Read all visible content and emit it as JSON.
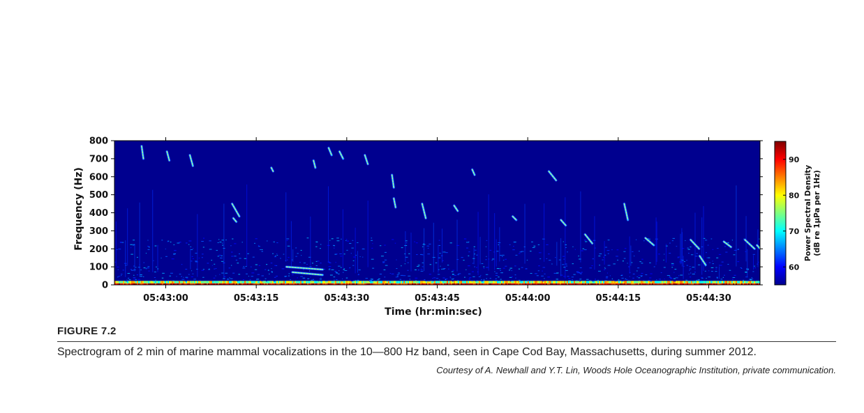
{
  "chart_data": {
    "type": "heatmap",
    "subtype": "spectrogram",
    "xlabel": "Time (hr:min:sec)",
    "ylabel": "Frequency (Hz)",
    "x_ticks": [
      "05:43:00",
      "05:43:15",
      "05:43:30",
      "05:43:45",
      "05:44:00",
      "05:44:15",
      "05:44:30"
    ],
    "x_tick_seconds": [
      0,
      15,
      30,
      45,
      60,
      75,
      90
    ],
    "xlim_seconds": [
      -8.5,
      98.5
    ],
    "y_ticks": [
      0,
      100,
      200,
      300,
      400,
      500,
      600,
      700,
      800
    ],
    "ylim": [
      0,
      800
    ],
    "colorbar": {
      "label_line1": "Power Spectral Density",
      "label_line2": "(dB re 1μPa per 1Hz)",
      "ticks": [
        60,
        70,
        80,
        90
      ],
      "range": [
        55,
        95
      ],
      "colormap": "jet"
    },
    "background_color": "#00008f",
    "vocalizations": [
      {
        "t": -4.0,
        "f_start": 770,
        "f_end": 700,
        "dur": 0.3
      },
      {
        "t": 0.2,
        "f_start": 740,
        "f_end": 690,
        "dur": 0.4
      },
      {
        "t": 4.0,
        "f_start": 720,
        "f_end": 660,
        "dur": 0.5
      },
      {
        "t": 11.0,
        "f_start": 450,
        "f_end": 380,
        "dur": 1.2
      },
      {
        "t": 11.2,
        "f_start": 370,
        "f_end": 350,
        "dur": 0.5
      },
      {
        "t": 17.5,
        "f_start": 650,
        "f_end": 630,
        "dur": 0.3
      },
      {
        "t": 24.5,
        "f_start": 690,
        "f_end": 650,
        "dur": 0.3
      },
      {
        "t": 27.0,
        "f_start": 760,
        "f_end": 720,
        "dur": 0.5
      },
      {
        "t": 28.8,
        "f_start": 740,
        "f_end": 700,
        "dur": 0.6
      },
      {
        "t": 33.0,
        "f_start": 720,
        "f_end": 670,
        "dur": 0.5
      },
      {
        "t": 37.5,
        "f_start": 610,
        "f_end": 540,
        "dur": 0.3
      },
      {
        "t": 37.8,
        "f_start": 480,
        "f_end": 430,
        "dur": 0.3
      },
      {
        "t": 42.5,
        "f_start": 450,
        "f_end": 370,
        "dur": 0.6
      },
      {
        "t": 47.8,
        "f_start": 440,
        "f_end": 410,
        "dur": 0.6
      },
      {
        "t": 50.8,
        "f_start": 640,
        "f_end": 610,
        "dur": 0.4
      },
      {
        "t": 57.5,
        "f_start": 380,
        "f_end": 360,
        "dur": 0.6
      },
      {
        "t": 63.5,
        "f_start": 630,
        "f_end": 580,
        "dur": 1.2
      },
      {
        "t": 65.5,
        "f_start": 360,
        "f_end": 330,
        "dur": 0.8
      },
      {
        "t": 69.5,
        "f_start": 280,
        "f_end": 230,
        "dur": 1.2
      },
      {
        "t": 76.0,
        "f_start": 450,
        "f_end": 360,
        "dur": 0.6
      },
      {
        "t": 79.5,
        "f_start": 260,
        "f_end": 220,
        "dur": 1.4
      },
      {
        "t": 87.0,
        "f_start": 250,
        "f_end": 200,
        "dur": 1.4
      },
      {
        "t": 92.5,
        "f_start": 240,
        "f_end": 210,
        "dur": 1.2
      },
      {
        "t": 96.0,
        "f_start": 250,
        "f_end": 200,
        "dur": 1.6
      },
      {
        "t": 98.0,
        "f_start": 220,
        "f_end": 190,
        "dur": 0.8
      },
      {
        "t": 88.5,
        "f_start": 160,
        "f_end": 110,
        "dur": 1.0
      },
      {
        "t": 20.0,
        "f_start": 100,
        "f_end": 85,
        "dur": 6.0
      },
      {
        "t": 21.0,
        "f_start": 70,
        "f_end": 55,
        "dur": 5.0
      }
    ]
  },
  "caption": {
    "label": "FIGURE 7.2",
    "text": "Spectrogram of 2 min of marine mammal vocalizations in the 10—800 Hz band, seen in Cape Cod Bay, Massachusetts, during summer 2012.",
    "credit": "Courtesy of A. Newhall and Y.T. Lin, Woods Hole Oceanographic Institution, private communication."
  }
}
